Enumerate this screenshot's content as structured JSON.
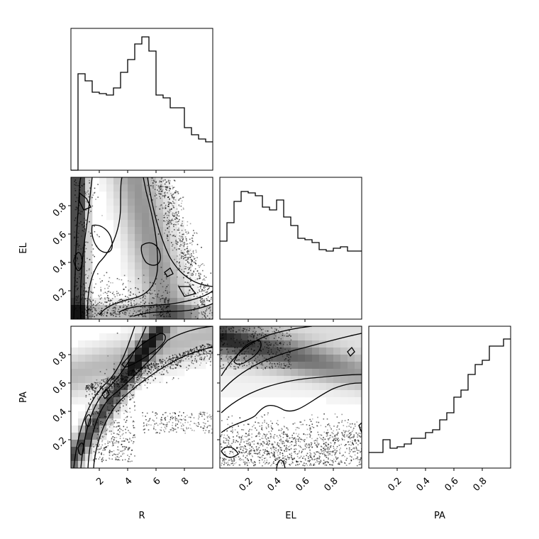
{
  "chart_data": {
    "type": "corner",
    "parameters": [
      "R",
      "EL",
      "PA"
    ],
    "axes": {
      "R": {
        "lim": [
          0,
          10
        ],
        "ticks": [
          2,
          4,
          6,
          8
        ],
        "tick_labels": [
          "2",
          "4",
          "6",
          "8"
        ]
      },
      "EL": {
        "lim": [
          0,
          1
        ],
        "ticks": [
          0.2,
          0.4,
          0.6,
          0.8
        ],
        "tick_labels": [
          "0.2",
          "0.4",
          "0.6",
          "0.8"
        ]
      },
      "PA": {
        "lim": [
          0,
          1
        ],
        "ticks": [
          0.2,
          0.4,
          0.6,
          0.8
        ],
        "tick_labels": [
          "0.2",
          "0.4",
          "0.6",
          "0.8"
        ]
      }
    },
    "histograms": {
      "R": {
        "bin_edges": [
          0,
          0.5,
          1,
          1.5,
          2,
          2.5,
          3,
          3.5,
          4,
          4.5,
          5,
          5.5,
          6,
          6.5,
          7,
          7.5,
          8,
          8.5,
          9,
          9.5,
          10
        ],
        "counts": [
          0,
          0.68,
          0.63,
          0.55,
          0.54,
          0.53,
          0.58,
          0.69,
          0.78,
          0.89,
          0.94,
          0.84,
          0.53,
          0.51,
          0.44,
          0.44,
          0.3,
          0.25,
          0.22,
          0.2
        ]
      },
      "EL": {
        "bin_edges": [
          0,
          0.05,
          0.1,
          0.15,
          0.2,
          0.25,
          0.3,
          0.35,
          0.4,
          0.45,
          0.5,
          0.55,
          0.6,
          0.65,
          0.7,
          0.75,
          0.8,
          0.85,
          0.9,
          0.95,
          1
        ],
        "counts": [
          0.55,
          0.68,
          0.83,
          0.9,
          0.89,
          0.87,
          0.79,
          0.77,
          0.84,
          0.72,
          0.66,
          0.57,
          0.56,
          0.54,
          0.49,
          0.48,
          0.5,
          0.51,
          0.48,
          0.48
        ]
      },
      "PA": {
        "bin_edges": [
          0,
          0.05,
          0.1,
          0.15,
          0.2,
          0.25,
          0.3,
          0.35,
          0.4,
          0.45,
          0.5,
          0.55,
          0.6,
          0.65,
          0.7,
          0.75,
          0.8,
          0.85,
          0.9,
          0.95,
          1
        ],
        "counts": [
          0.11,
          0.11,
          0.2,
          0.14,
          0.15,
          0.17,
          0.21,
          0.21,
          0.25,
          0.27,
          0.34,
          0.39,
          0.5,
          0.55,
          0.66,
          0.73,
          0.76,
          0.86,
          0.86,
          0.91
        ]
      }
    }
  }
}
